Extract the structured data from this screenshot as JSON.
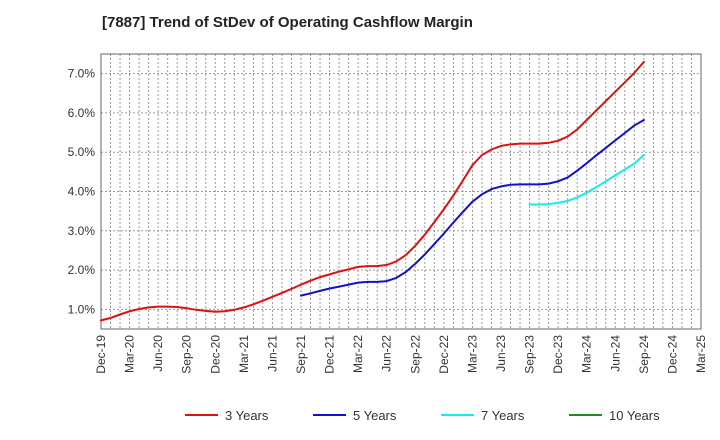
{
  "title": "[7887]  Trend of StDev of Operating Cashflow Margin",
  "chart_data": {
    "type": "line",
    "title": "[7887]  Trend of StDev of Operating Cashflow Margin",
    "xlabel": "",
    "ylabel": "",
    "x_ticks": [
      "Dec-19",
      "Mar-20",
      "Jun-20",
      "Sep-20",
      "Dec-20",
      "Mar-21",
      "Jun-21",
      "Sep-21",
      "Dec-21",
      "Mar-22",
      "Jun-22",
      "Sep-22",
      "Dec-22",
      "Mar-23",
      "Jun-23",
      "Sep-23",
      "Dec-23",
      "Mar-24",
      "Jun-24",
      "Sep-24",
      "Dec-24",
      "Mar-25"
    ],
    "y_ticks": [
      "1.0%",
      "2.0%",
      "3.0%",
      "4.0%",
      "5.0%",
      "6.0%",
      "7.0%"
    ],
    "ylim": [
      0.5,
      7.5
    ],
    "y_unit": "%",
    "grid": true,
    "legend_position": "bottom",
    "series": [
      {
        "name": "3 Years",
        "color": "#dd1111",
        "x": [
          "Dec-19",
          "Jan-20",
          "Feb-20",
          "Mar-20",
          "Apr-20",
          "May-20",
          "Jun-20",
          "Jul-20",
          "Aug-20",
          "Sep-20",
          "Oct-20",
          "Nov-20",
          "Dec-20",
          "Jan-21",
          "Feb-21",
          "Mar-21",
          "Apr-21",
          "May-21",
          "Jun-21",
          "Jul-21",
          "Aug-21",
          "Sep-21",
          "Oct-21",
          "Nov-21",
          "Dec-21",
          "Jan-22",
          "Feb-22",
          "Mar-22",
          "Apr-22",
          "May-22",
          "Jun-22",
          "Jul-22",
          "Aug-22",
          "Sep-22",
          "Oct-22",
          "Nov-22",
          "Dec-22",
          "Jan-23",
          "Feb-23",
          "Mar-23",
          "Apr-23",
          "May-23",
          "Jun-23",
          "Jul-23",
          "Aug-23",
          "Sep-23",
          "Oct-23",
          "Nov-23",
          "Dec-23",
          "Jan-24",
          "Feb-24",
          "Mar-24",
          "Apr-24",
          "May-24",
          "Jun-24",
          "Jul-24",
          "Aug-24",
          "Sep-24"
        ],
        "values": [
          0.72,
          0.78,
          0.87,
          0.95,
          1.01,
          1.05,
          1.07,
          1.07,
          1.06,
          1.03,
          0.99,
          0.96,
          0.94,
          0.95,
          0.99,
          1.05,
          1.13,
          1.22,
          1.32,
          1.42,
          1.52,
          1.63,
          1.73,
          1.82,
          1.89,
          1.96,
          2.02,
          2.08,
          2.1,
          2.1,
          2.13,
          2.22,
          2.38,
          2.62,
          2.9,
          3.22,
          3.55,
          3.9,
          4.28,
          4.67,
          4.93,
          5.07,
          5.16,
          5.2,
          5.22,
          5.22,
          5.22,
          5.24,
          5.29,
          5.4,
          5.58,
          5.82,
          6.06,
          6.3,
          6.54,
          6.78,
          7.02,
          7.3
        ]
      },
      {
        "name": "5 Years",
        "color": "#1111cc",
        "x": [
          "Sep-21",
          "Oct-21",
          "Nov-21",
          "Dec-21",
          "Jan-22",
          "Feb-22",
          "Mar-22",
          "Apr-22",
          "May-22",
          "Jun-22",
          "Jul-22",
          "Aug-22",
          "Sep-22",
          "Oct-22",
          "Nov-22",
          "Dec-22",
          "Jan-23",
          "Feb-23",
          "Mar-23",
          "Apr-23",
          "May-23",
          "Jun-23",
          "Jul-23",
          "Aug-23",
          "Sep-23",
          "Oct-23",
          "Nov-23",
          "Dec-23",
          "Jan-24",
          "Feb-24",
          "Mar-24",
          "Apr-24",
          "May-24",
          "Jun-24",
          "Jul-24",
          "Aug-24",
          "Sep-24"
        ],
        "values": [
          1.35,
          1.41,
          1.47,
          1.53,
          1.58,
          1.63,
          1.68,
          1.7,
          1.7,
          1.72,
          1.8,
          1.95,
          2.16,
          2.4,
          2.66,
          2.93,
          3.21,
          3.48,
          3.74,
          3.93,
          4.06,
          4.13,
          4.17,
          4.18,
          4.18,
          4.18,
          4.2,
          4.26,
          4.36,
          4.53,
          4.72,
          4.92,
          5.11,
          5.3,
          5.49,
          5.68,
          5.82
        ]
      },
      {
        "name": "7 Years",
        "color": "#11eeee",
        "x": [
          "Sep-23",
          "Oct-23",
          "Nov-23",
          "Dec-23",
          "Jan-24",
          "Feb-24",
          "Mar-24",
          "Apr-24",
          "May-24",
          "Jun-24",
          "Jul-24",
          "Aug-24",
          "Sep-24"
        ],
        "values": [
          3.67,
          3.67,
          3.68,
          3.71,
          3.76,
          3.85,
          3.97,
          4.11,
          4.26,
          4.41,
          4.56,
          4.71,
          4.93
        ]
      },
      {
        "name": "10 Years",
        "color": "#228822",
        "x": [],
        "values": []
      }
    ]
  }
}
